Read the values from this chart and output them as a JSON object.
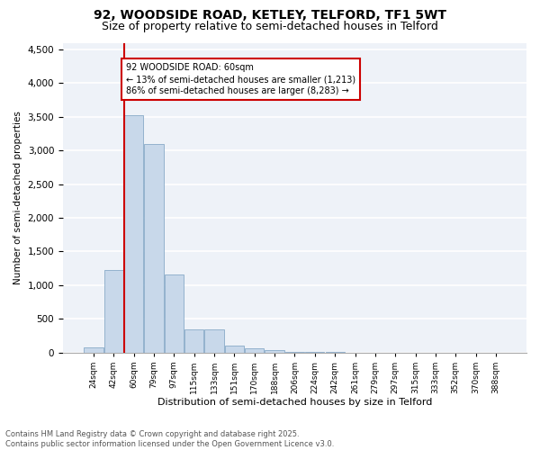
{
  "title": "92, WOODSIDE ROAD, KETLEY, TELFORD, TF1 5WT",
  "subtitle": "Size of property relative to semi-detached houses in Telford",
  "xlabel": "Distribution of semi-detached houses by size in Telford",
  "ylabel": "Number of semi-detached properties",
  "categories": [
    "24sqm",
    "42sqm",
    "60sqm",
    "79sqm",
    "97sqm",
    "115sqm",
    "133sqm",
    "151sqm",
    "170sqm",
    "188sqm",
    "206sqm",
    "224sqm",
    "242sqm",
    "261sqm",
    "279sqm",
    "297sqm",
    "315sqm",
    "333sqm",
    "352sqm",
    "370sqm",
    "388sqm"
  ],
  "values": [
    80,
    1220,
    3520,
    3100,
    1160,
    340,
    340,
    95,
    55,
    30,
    5,
    2,
    1,
    0,
    0,
    0,
    0,
    0,
    0,
    0,
    0
  ],
  "bar_color": "#c8d8ea",
  "bar_edgecolor": "#88aac8",
  "vline_color": "#cc0000",
  "annotation_box_text": "92 WOODSIDE ROAD: 60sqm\n← 13% of semi-detached houses are smaller (1,213)\n86% of semi-detached houses are larger (8,283) →",
  "annotation_box_edgecolor": "#cc0000",
  "ylim": [
    0,
    4600
  ],
  "yticks": [
    0,
    500,
    1000,
    1500,
    2000,
    2500,
    3000,
    3500,
    4000,
    4500
  ],
  "background_color": "#eef2f8",
  "grid_color": "#ffffff",
  "footnote": "Contains HM Land Registry data © Crown copyright and database right 2025.\nContains public sector information licensed under the Open Government Licence v3.0.",
  "title_fontsize": 10,
  "subtitle_fontsize": 9,
  "xlabel_fontsize": 8,
  "ylabel_fontsize": 7.5,
  "xtick_fontsize": 6.5,
  "ytick_fontsize": 7.5,
  "annotation_fontsize": 7,
  "footnote_fontsize": 6
}
